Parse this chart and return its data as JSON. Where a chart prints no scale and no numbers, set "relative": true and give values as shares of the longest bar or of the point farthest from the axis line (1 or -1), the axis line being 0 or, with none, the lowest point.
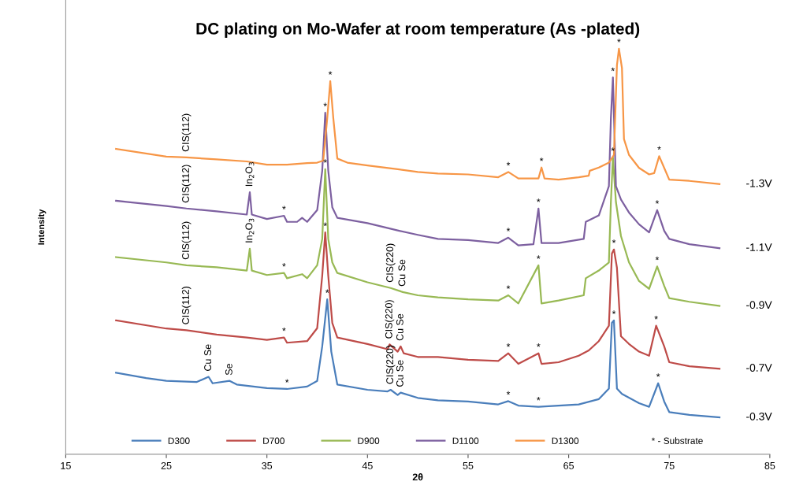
{
  "chart_data": {
    "type": "line",
    "title": "DC plating on Mo-Wafer at room temperature (As -plated)",
    "xlabel": "2θ",
    "ylabel": "Intensity",
    "relative": true,
    "xlim": [
      15,
      85
    ],
    "xticks": [
      15,
      25,
      35,
      45,
      55,
      65,
      75,
      85
    ],
    "grid": false,
    "legend": "bottom",
    "marker": "none",
    "line_style": "solid",
    "series": [
      {
        "name": "D300",
        "color": "#4a7ebb",
        "x": [
          20,
          23,
          25,
          28,
          29.2,
          29.6,
          31.3,
          32,
          35,
          37,
          39,
          40,
          40.5,
          41,
          41.4,
          42,
          45,
          47,
          47.3,
          48,
          48.3,
          50,
          52,
          55,
          58,
          59,
          60,
          62,
          64,
          66,
          68,
          69,
          69.3,
          69.5,
          69.8,
          70.3,
          72,
          73,
          73.9,
          74.5,
          75,
          77,
          80
        ],
        "values": [
          0.201,
          0.188,
          0.181,
          0.178,
          0.191,
          0.175,
          0.181,
          0.172,
          0.163,
          0.161,
          0.167,
          0.181,
          0.266,
          0.382,
          0.253,
          0.172,
          0.159,
          0.155,
          0.159,
          0.146,
          0.152,
          0.139,
          0.133,
          0.13,
          0.123,
          0.131,
          0.12,
          0.117,
          0.12,
          0.123,
          0.136,
          0.162,
          0.324,
          0.33,
          0.162,
          0.149,
          0.126,
          0.117,
          0.175,
          0.13,
          0.104,
          0.097,
          0.091
        ]
      },
      {
        "name": "D700",
        "color": "#be4b48",
        "x": [
          20,
          25,
          27,
          30,
          33,
          35,
          36.7,
          37,
          39,
          40,
          40.5,
          40.8,
          41.1,
          41.5,
          42,
          45,
          47,
          47.2,
          48,
          48.3,
          48.6,
          50,
          52,
          55,
          58,
          59,
          60,
          62,
          62.3,
          64,
          66,
          67,
          68,
          69,
          69.3,
          69.5,
          69.8,
          70.2,
          71,
          72,
          73,
          73.7,
          74.5,
          75,
          77,
          80
        ],
        "values": [
          0.33,
          0.31,
          0.306,
          0.295,
          0.288,
          0.282,
          0.288,
          0.275,
          0.279,
          0.311,
          0.44,
          0.547,
          0.44,
          0.324,
          0.288,
          0.272,
          0.259,
          0.271,
          0.253,
          0.266,
          0.249,
          0.24,
          0.24,
          0.233,
          0.23,
          0.249,
          0.223,
          0.249,
          0.223,
          0.227,
          0.243,
          0.256,
          0.279,
          0.317,
          0.495,
          0.505,
          0.46,
          0.291,
          0.272,
          0.253,
          0.243,
          0.317,
          0.266,
          0.227,
          0.217,
          0.211
        ]
      },
      {
        "name": "D900",
        "color": "#98b954",
        "x": [
          20,
          25,
          27,
          30,
          33,
          33.3,
          33.5,
          35,
          36.7,
          37,
          38.5,
          39,
          40,
          40.5,
          40.8,
          41.1,
          41.5,
          42,
          45,
          47.3,
          48.5,
          50,
          52,
          55,
          58,
          59,
          60,
          62,
          62.3,
          64,
          66.5,
          66.7,
          68,
          69,
          69.2,
          69.4,
          69.7,
          70.2,
          71,
          72,
          73,
          73.8,
          74.5,
          75,
          77,
          80
        ],
        "values": [
          0.486,
          0.473,
          0.466,
          0.461,
          0.453,
          0.507,
          0.453,
          0.442,
          0.447,
          0.434,
          0.444,
          0.434,
          0.466,
          0.531,
          0.703,
          0.531,
          0.473,
          0.447,
          0.424,
          0.41,
          0.4,
          0.392,
          0.387,
          0.382,
          0.379,
          0.392,
          0.372,
          0.466,
          0.372,
          0.379,
          0.392,
          0.434,
          0.453,
          0.473,
          0.622,
          0.732,
          0.622,
          0.538,
          0.473,
          0.427,
          0.408,
          0.463,
          0.415,
          0.385,
          0.376,
          0.366
        ]
      },
      {
        "name": "D1100",
        "color": "#7d60a0",
        "x": [
          20,
          25,
          27,
          30,
          33,
          33.3,
          33.5,
          35,
          36.7,
          37,
          38,
          38.5,
          39,
          40,
          40.5,
          40.8,
          41.1,
          41.5,
          42,
          45,
          48,
          50,
          52,
          55,
          58,
          59,
          60,
          61.5,
          62,
          62.3,
          64,
          66.5,
          66.7,
          68,
          69,
          69.2,
          69.4,
          69.7,
          70.2,
          71,
          72,
          73,
          73.8,
          74.5,
          75,
          77,
          80
        ],
        "values": [
          0.625,
          0.612,
          0.606,
          0.599,
          0.591,
          0.646,
          0.591,
          0.58,
          0.588,
          0.573,
          0.573,
          0.583,
          0.573,
          0.602,
          0.699,
          0.842,
          0.699,
          0.609,
          0.583,
          0.57,
          0.552,
          0.541,
          0.531,
          0.528,
          0.521,
          0.534,
          0.515,
          0.518,
          0.606,
          0.521,
          0.521,
          0.531,
          0.573,
          0.589,
          0.661,
          0.829,
          0.929,
          0.661,
          0.628,
          0.596,
          0.567,
          0.547,
          0.602,
          0.551,
          0.531,
          0.518,
          0.508
        ]
      },
      {
        "name": "D1300",
        "color": "#f79646",
        "x": [
          20,
          25,
          27,
          30,
          33,
          35,
          37,
          39,
          40,
          40.6,
          41,
          41.3,
          41.6,
          42,
          43,
          45,
          48,
          50,
          52,
          55,
          58,
          59,
          60,
          62,
          62.3,
          62.6,
          64,
          66,
          67,
          67.1,
          68,
          69,
          69.5,
          69.8,
          70,
          70.3,
          70.5,
          71,
          72,
          73,
          73.5,
          74,
          74.5,
          75,
          77,
          80
        ],
        "values": [
          0.753,
          0.734,
          0.732,
          0.727,
          0.722,
          0.714,
          0.714,
          0.718,
          0.719,
          0.724,
          0.829,
          0.92,
          0.829,
          0.729,
          0.719,
          0.712,
          0.703,
          0.696,
          0.692,
          0.69,
          0.683,
          0.696,
          0.68,
          0.68,
          0.707,
          0.68,
          0.677,
          0.683,
          0.687,
          0.699,
          0.707,
          0.719,
          0.738,
          0.959,
          1.0,
          0.952,
          0.777,
          0.738,
          0.706,
          0.69,
          0.693,
          0.735,
          0.706,
          0.677,
          0.674,
          0.666
        ]
      }
    ],
    "annotations": [
      {
        "text": "CIS(112)",
        "x": 27,
        "y": 0.732
      },
      {
        "text": "*",
        "x": 41.3,
        "y": 0.92
      },
      {
        "text": "*",
        "x": 59,
        "y": 0.696
      },
      {
        "text": "*",
        "x": 62.3,
        "y": 0.707
      },
      {
        "text": "*",
        "x": 70,
        "y": 1.0
      },
      {
        "text": "*",
        "x": 74,
        "y": 0.735
      },
      {
        "text": "CIS(112)",
        "x": 27,
        "y": 0.606
      },
      {
        "text": "In$_{2}$O$_{3}$",
        "x": 33.3,
        "y": 0.646
      },
      {
        "text": "*",
        "x": 36.7,
        "y": 0.588
      },
      {
        "text": "*",
        "x": 40.8,
        "y": 0.842
      },
      {
        "text": "*",
        "x": 59,
        "y": 0.534
      },
      {
        "text": "*",
        "x": 62,
        "y": 0.606
      },
      {
        "text": "*",
        "x": 69.4,
        "y": 0.929
      },
      {
        "text": "*",
        "x": 73.8,
        "y": 0.602
      },
      {
        "text": "CIS(112)",
        "x": 27,
        "y": 0.466
      },
      {
        "text": "In$_{2}$O$_{3}$",
        "x": 33.3,
        "y": 0.507
      },
      {
        "text": "*",
        "x": 36.7,
        "y": 0.447
      },
      {
        "text": "*",
        "x": 40.8,
        "y": 0.703
      },
      {
        "text": "CIS(220)",
        "x": 47.3,
        "y": 0.41
      },
      {
        "text": "Cu Se",
        "x": 48.5,
        "y": 0.4
      },
      {
        "text": "*",
        "x": 59,
        "y": 0.392
      },
      {
        "text": "*",
        "x": 62,
        "y": 0.466
      },
      {
        "text": "*",
        "x": 69.4,
        "y": 0.732
      },
      {
        "text": "*",
        "x": 73.8,
        "y": 0.463
      },
      {
        "text": "CIS(112)",
        "x": 27,
        "y": 0.306
      },
      {
        "text": "*",
        "x": 36.7,
        "y": 0.288
      },
      {
        "text": "*",
        "x": 40.8,
        "y": 0.547
      },
      {
        "text": "CIS(220)",
        "x": 47.2,
        "y": 0.271
      },
      {
        "text": "Cu Se",
        "x": 48.3,
        "y": 0.266
      },
      {
        "text": "*",
        "x": 59,
        "y": 0.249
      },
      {
        "text": "*",
        "x": 62,
        "y": 0.249
      },
      {
        "text": "*",
        "x": 69.5,
        "y": 0.505
      },
      {
        "text": "*",
        "x": 73.7,
        "y": 0.317
      },
      {
        "text": "Cu Se",
        "x": 29.2,
        "y": 0.191
      },
      {
        "text": "Se",
        "x": 31.3,
        "y": 0.181
      },
      {
        "text": "*",
        "x": 37,
        "y": 0.161
      },
      {
        "text": "*",
        "x": 41,
        "y": 0.382
      },
      {
        "text": "CIS(220)",
        "x": 47.3,
        "y": 0.159
      },
      {
        "text": "Cu Se",
        "x": 48.3,
        "y": 0.152
      },
      {
        "text": "*",
        "x": 59,
        "y": 0.131
      },
      {
        "text": "*",
        "x": 62,
        "y": 0.117
      },
      {
        "text": "*",
        "x": 69.5,
        "y": 0.33
      },
      {
        "text": "*",
        "x": 73.9,
        "y": 0.175
      },
      {
        "text": "-1.3V",
        "x": 80,
        "y": 0.666
      },
      {
        "text": "-1.1V",
        "x": 80,
        "y": 0.508
      },
      {
        "text": "-0.9V",
        "x": 80,
        "y": 0.366
      },
      {
        "text": "-0.7V",
        "x": 80,
        "y": 0.211
      },
      {
        "text": "-0.3V",
        "x": 80,
        "y": 0.091
      },
      "* - Substrate"
    ]
  }
}
